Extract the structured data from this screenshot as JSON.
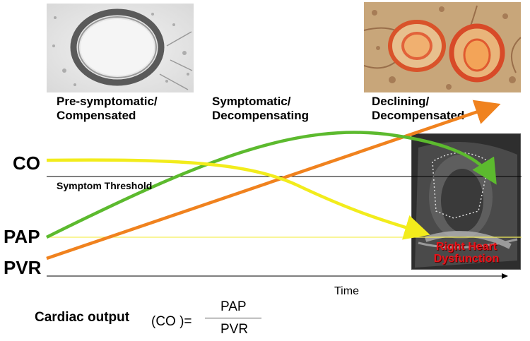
{
  "stages": [
    {
      "label": "Pre-symptomatic/\nCompensated"
    },
    {
      "label": "Symptomatic/\nDecompensating"
    },
    {
      "label": "Declining/\nDecompensated"
    }
  ],
  "variables": {
    "co": "CO",
    "pap": "PAP",
    "pvr": "PVR"
  },
  "threshold_label": "Symptom Threshold",
  "x_axis_label": "Time",
  "rhd_label": "Right Heart\nDysfunction",
  "formula": {
    "prefix": "Cardiac output",
    "lhs": "(CO )=",
    "numerator": "PAP",
    "denominator": "PVR"
  },
  "colors": {
    "co": "#f2ec1c",
    "pap": "#5cba2e",
    "pvr": "#f0821e",
    "threshold_yellow": "#f5ef5a",
    "rhd": "#e8141b"
  },
  "images": [
    "normal-vessel-histology",
    "diseased-vessel-histology",
    "echocardiogram"
  ]
}
